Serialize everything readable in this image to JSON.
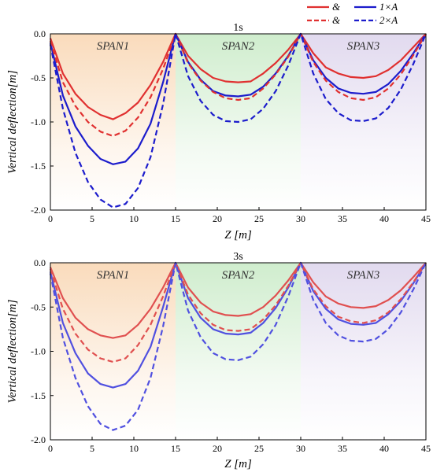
{
  "legend": {
    "placement": "top-right",
    "entries": [
      {
        "label": "&",
        "style": "solid",
        "color": "#e03030"
      },
      {
        "label": "1×A",
        "style": "solid",
        "color": "#1c1ccc"
      },
      {
        "label": "&",
        "style": "dashed",
        "color": "#e03030"
      },
      {
        "label": "2×A",
        "style": "dashed",
        "color": "#1c1ccc"
      }
    ]
  },
  "chart_data": [
    {
      "type": "line",
      "title": "1s",
      "xlabel": "Z [m]",
      "ylabel": "Vertical deflection[m]",
      "xlim": [
        0,
        45
      ],
      "ylim": [
        -2.0,
        0.0
      ],
      "xticks": [
        0,
        5,
        10,
        15,
        20,
        25,
        30,
        35,
        40,
        45
      ],
      "yticks": [
        0.0,
        -0.5,
        -1.0,
        -1.5,
        -2.0
      ],
      "grid": false,
      "spans": [
        {
          "label": "SPAN1",
          "x": [
            0,
            15
          ],
          "color": "#f9d9b8"
        },
        {
          "label": "SPAN2",
          "x": [
            15,
            30
          ],
          "color": "#cdeccb"
        },
        {
          "label": "SPAN3",
          "x": [
            30,
            45
          ],
          "color": "#e0d8ee"
        }
      ],
      "series": [
        {
          "style": "solid",
          "color": "#e03030",
          "x": [
            0,
            1.5,
            3,
            4.5,
            6,
            7.5,
            9,
            10.5,
            12,
            13.5,
            15,
            16.5,
            18,
            19.5,
            21,
            22.5,
            24,
            25.5,
            27,
            28.5,
            30,
            31.5,
            33,
            34.5,
            36,
            37.5,
            39,
            40.5,
            42,
            43.5,
            45
          ],
          "y": [
            -0.05,
            -0.45,
            -0.68,
            -0.83,
            -0.92,
            -0.97,
            -0.9,
            -0.78,
            -0.58,
            -0.32,
            0.0,
            -0.25,
            -0.4,
            -0.5,
            -0.54,
            -0.55,
            -0.54,
            -0.45,
            -0.33,
            -0.18,
            0.0,
            -0.22,
            -0.38,
            -0.45,
            -0.49,
            -0.5,
            -0.48,
            -0.41,
            -0.3,
            -0.15,
            0.0
          ]
        },
        {
          "style": "solid",
          "color": "#1c1ccc",
          "x": [
            0,
            1.5,
            3,
            4.5,
            6,
            7.5,
            9,
            10.5,
            12,
            13.5,
            15,
            16.5,
            18,
            19.5,
            21,
            22.5,
            24,
            25.5,
            27,
            28.5,
            30,
            31.5,
            33,
            34.5,
            36,
            37.5,
            39,
            40.5,
            42,
            43.5,
            45
          ],
          "y": [
            -0.1,
            -0.7,
            -1.05,
            -1.27,
            -1.42,
            -1.48,
            -1.45,
            -1.3,
            -1.02,
            -0.55,
            0.0,
            -0.32,
            -0.52,
            -0.65,
            -0.7,
            -0.71,
            -0.69,
            -0.6,
            -0.45,
            -0.25,
            0.0,
            -0.3,
            -0.5,
            -0.62,
            -0.67,
            -0.68,
            -0.66,
            -0.57,
            -0.42,
            -0.22,
            0.0
          ]
        },
        {
          "style": "dashed",
          "color": "#e03030",
          "x": [
            0,
            1.5,
            3,
            4.5,
            6,
            7.5,
            9,
            10.5,
            12,
            13.5,
            15,
            16.5,
            18,
            19.5,
            21,
            22.5,
            24,
            25.5,
            27,
            28.5,
            30,
            31.5,
            33,
            34.5,
            36,
            37.5,
            39,
            40.5,
            42,
            43.5,
            45
          ],
          "y": [
            -0.08,
            -0.55,
            -0.82,
            -1.0,
            -1.11,
            -1.16,
            -1.1,
            -0.95,
            -0.72,
            -0.4,
            0.0,
            -0.33,
            -0.53,
            -0.66,
            -0.73,
            -0.75,
            -0.73,
            -0.62,
            -0.46,
            -0.26,
            0.0,
            -0.32,
            -0.53,
            -0.66,
            -0.73,
            -0.75,
            -0.72,
            -0.62,
            -0.46,
            -0.24,
            0.0
          ]
        },
        {
          "style": "dashed",
          "color": "#1c1ccc",
          "x": [
            0,
            1.5,
            3,
            4.5,
            6,
            7.5,
            9,
            10.5,
            12,
            13.5,
            15,
            16.5,
            18,
            19.5,
            21,
            22.5,
            24,
            25.5,
            27,
            28.5,
            30,
            31.5,
            33,
            34.5,
            36,
            37.5,
            39,
            40.5,
            42,
            43.5,
            45
          ],
          "y": [
            -0.12,
            -0.85,
            -1.35,
            -1.68,
            -1.88,
            -1.97,
            -1.93,
            -1.75,
            -1.4,
            -0.8,
            0.0,
            -0.48,
            -0.76,
            -0.92,
            -0.99,
            -1.0,
            -0.97,
            -0.85,
            -0.65,
            -0.36,
            0.0,
            -0.45,
            -0.74,
            -0.9,
            -0.98,
            -0.99,
            -0.96,
            -0.84,
            -0.63,
            -0.34,
            0.0
          ]
        }
      ]
    },
    {
      "type": "line",
      "title": "3s",
      "xlabel": "Z [m]",
      "ylabel": "Vertical deflection[m]",
      "xlim": [
        0,
        45
      ],
      "ylim": [
        -2.0,
        0.0
      ],
      "xticks": [
        0,
        5,
        10,
        15,
        20,
        25,
        30,
        35,
        40,
        45
      ],
      "yticks": [
        0.0,
        -0.5,
        -1.0,
        -1.5,
        -2.0
      ],
      "grid": false,
      "spans": [
        {
          "label": "SPAN1",
          "x": [
            0,
            15
          ],
          "color": "#f9d9b8"
        },
        {
          "label": "SPAN2",
          "x": [
            15,
            30
          ],
          "color": "#cdeccb"
        },
        {
          "label": "SPAN3",
          "x": [
            30,
            45
          ],
          "color": "#e0d8ee"
        }
      ],
      "series": [
        {
          "style": "solid",
          "color": "#e05050",
          "x": [
            0,
            1.5,
            3,
            4.5,
            6,
            7.5,
            9,
            10.5,
            12,
            13.5,
            15,
            16.5,
            18,
            19.5,
            21,
            22.5,
            24,
            25.5,
            27,
            28.5,
            30,
            31.5,
            33,
            34.5,
            36,
            37.5,
            39,
            40.5,
            42,
            43.5,
            45
          ],
          "y": [
            -0.05,
            -0.4,
            -0.62,
            -0.75,
            -0.82,
            -0.85,
            -0.82,
            -0.7,
            -0.52,
            -0.28,
            0.0,
            -0.28,
            -0.45,
            -0.55,
            -0.59,
            -0.6,
            -0.58,
            -0.5,
            -0.37,
            -0.2,
            0.0,
            -0.22,
            -0.38,
            -0.46,
            -0.5,
            -0.51,
            -0.49,
            -0.42,
            -0.31,
            -0.16,
            0.0
          ]
        },
        {
          "style": "solid",
          "color": "#5050e0",
          "x": [
            0,
            1.5,
            3,
            4.5,
            6,
            7.5,
            9,
            10.5,
            12,
            13.5,
            15,
            16.5,
            18,
            19.5,
            21,
            22.5,
            24,
            25.5,
            27,
            28.5,
            30,
            31.5,
            33,
            34.5,
            36,
            37.5,
            39,
            40.5,
            42,
            43.5,
            45
          ],
          "y": [
            -0.1,
            -0.68,
            -1.02,
            -1.25,
            -1.37,
            -1.41,
            -1.37,
            -1.22,
            -0.95,
            -0.5,
            0.0,
            -0.4,
            -0.62,
            -0.75,
            -0.8,
            -0.81,
            -0.79,
            -0.68,
            -0.51,
            -0.28,
            0.0,
            -0.32,
            -0.52,
            -0.64,
            -0.69,
            -0.7,
            -0.68,
            -0.58,
            -0.43,
            -0.23,
            0.0
          ]
        },
        {
          "style": "dashed",
          "color": "#e05050",
          "x": [
            0,
            1.5,
            3,
            4.5,
            6,
            7.5,
            9,
            10.5,
            12,
            13.5,
            15,
            16.5,
            18,
            19.5,
            21,
            22.5,
            24,
            25.5,
            27,
            28.5,
            30,
            31.5,
            33,
            34.5,
            36,
            37.5,
            39,
            40.5,
            42,
            43.5,
            45
          ],
          "y": [
            -0.07,
            -0.52,
            -0.8,
            -0.98,
            -1.08,
            -1.12,
            -1.08,
            -0.93,
            -0.7,
            -0.38,
            0.0,
            -0.36,
            -0.57,
            -0.7,
            -0.76,
            -0.77,
            -0.75,
            -0.64,
            -0.48,
            -0.26,
            0.0,
            -0.3,
            -0.49,
            -0.61,
            -0.66,
            -0.68,
            -0.65,
            -0.56,
            -0.41,
            -0.22,
            0.0
          ]
        },
        {
          "style": "dashed",
          "color": "#5050e0",
          "x": [
            0,
            1.5,
            3,
            4.5,
            6,
            7.5,
            9,
            10.5,
            12,
            13.5,
            15,
            16.5,
            18,
            19.5,
            21,
            22.5,
            24,
            25.5,
            27,
            28.5,
            30,
            31.5,
            33,
            34.5,
            36,
            37.5,
            39,
            40.5,
            42,
            43.5,
            45
          ],
          "y": [
            -0.12,
            -0.85,
            -1.3,
            -1.62,
            -1.82,
            -1.89,
            -1.84,
            -1.66,
            -1.3,
            -0.72,
            0.0,
            -0.54,
            -0.84,
            -1.02,
            -1.09,
            -1.1,
            -1.06,
            -0.92,
            -0.7,
            -0.38,
            0.0,
            -0.42,
            -0.68,
            -0.82,
            -0.88,
            -0.89,
            -0.86,
            -0.75,
            -0.56,
            -0.3,
            0.0
          ]
        }
      ]
    }
  ]
}
